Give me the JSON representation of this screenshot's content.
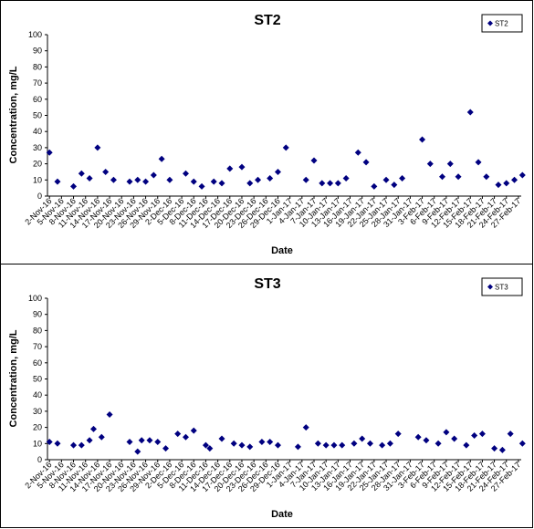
{
  "chart_data": [
    {
      "type": "scatter",
      "title": "ST2",
      "xlabel": "Date",
      "ylabel": "Concentration, mg/L",
      "ylim": [
        0,
        100
      ],
      "yticks": [
        "0",
        "10",
        "20",
        "30",
        "40",
        "50",
        "60",
        "70",
        "80",
        "90",
        "100"
      ],
      "xticks": [
        "2-Nov-16",
        "5-Nov-16",
        "8-Nov-16",
        "11-Nov-16",
        "14-Nov-16",
        "17-Nov-16",
        "20-Nov-16",
        "23-Nov-16",
        "26-Nov-16",
        "29-Nov-16",
        "2-Dec-16",
        "5-Dec-16",
        "8-Dec-16",
        "11-Dec-16",
        "14-Dec-16",
        "17-Dec-16",
        "20-Dec-16",
        "23-Dec-16",
        "26-Dec-16",
        "29-Dec-16",
        "1-Jan-17",
        "4-Jan-17",
        "7-Jan-17",
        "10-Jan-17",
        "13-Jan-17",
        "16-Jan-17",
        "19-Jan-17",
        "22-Jan-17",
        "25-Jan-17",
        "28-Jan-17",
        "31-Jan-17",
        "3-Feb-17",
        "6-Feb-17",
        "9-Feb-17",
        "12-Feb-17",
        "15-Feb-17",
        "18-Feb-17",
        "21-Feb-17",
        "24-Feb-17",
        "27-Feb-17"
      ],
      "grid": false,
      "legend": "top-right",
      "series": [
        {
          "name": "ST2",
          "color": "#000080",
          "points": [
            {
              "x": "2-Nov-16",
              "y": 27
            },
            {
              "x": "4-Nov-16",
              "y": 9
            },
            {
              "x": "8-Nov-16",
              "y": 6
            },
            {
              "x": "10-Nov-16",
              "y": 14
            },
            {
              "x": "12-Nov-16",
              "y": 11
            },
            {
              "x": "14-Nov-16",
              "y": 30
            },
            {
              "x": "16-Nov-16",
              "y": 15
            },
            {
              "x": "18-Nov-16",
              "y": 10
            },
            {
              "x": "22-Nov-16",
              "y": 9
            },
            {
              "x": "24-Nov-16",
              "y": 10
            },
            {
              "x": "26-Nov-16",
              "y": 9
            },
            {
              "x": "28-Nov-16",
              "y": 13
            },
            {
              "x": "30-Nov-16",
              "y": 23
            },
            {
              "x": "2-Dec-16",
              "y": 10
            },
            {
              "x": "6-Dec-16",
              "y": 14
            },
            {
              "x": "8-Dec-16",
              "y": 9
            },
            {
              "x": "10-Dec-16",
              "y": 6
            },
            {
              "x": "13-Dec-16",
              "y": 9
            },
            {
              "x": "15-Dec-16",
              "y": 8
            },
            {
              "x": "17-Dec-16",
              "y": 17
            },
            {
              "x": "20-Dec-16",
              "y": 18
            },
            {
              "x": "22-Dec-16",
              "y": 8
            },
            {
              "x": "24-Dec-16",
              "y": 10
            },
            {
              "x": "27-Dec-16",
              "y": 11
            },
            {
              "x": "29-Dec-16",
              "y": 15
            },
            {
              "x": "31-Dec-16",
              "y": 30
            },
            {
              "x": "5-Jan-17",
              "y": 10
            },
            {
              "x": "7-Jan-17",
              "y": 22
            },
            {
              "x": "9-Jan-17",
              "y": 8
            },
            {
              "x": "11-Jan-17",
              "y": 8
            },
            {
              "x": "13-Jan-17",
              "y": 8
            },
            {
              "x": "15-Jan-17",
              "y": 11
            },
            {
              "x": "18-Jan-17",
              "y": 27
            },
            {
              "x": "20-Jan-17",
              "y": 21
            },
            {
              "x": "22-Jan-17",
              "y": 6
            },
            {
              "x": "25-Jan-17",
              "y": 10
            },
            {
              "x": "27-Jan-17",
              "y": 7
            },
            {
              "x": "29-Jan-17",
              "y": 11
            },
            {
              "x": "3-Feb-17",
              "y": 35
            },
            {
              "x": "5-Feb-17",
              "y": 20
            },
            {
              "x": "8-Feb-17",
              "y": 12
            },
            {
              "x": "10-Feb-17",
              "y": 20
            },
            {
              "x": "12-Feb-17",
              "y": 12
            },
            {
              "x": "15-Feb-17",
              "y": 52
            },
            {
              "x": "17-Feb-17",
              "y": 21
            },
            {
              "x": "19-Feb-17",
              "y": 12
            },
            {
              "x": "22-Feb-17",
              "y": 7
            },
            {
              "x": "24-Feb-17",
              "y": 8
            },
            {
              "x": "26-Feb-17",
              "y": 10
            },
            {
              "x": "28-Feb-17",
              "y": 13
            }
          ]
        }
      ]
    },
    {
      "type": "scatter",
      "title": "ST3",
      "xlabel": "Date",
      "ylabel": "Concentration, mg/L",
      "ylim": [
        0,
        100
      ],
      "yticks": [
        "0",
        "10",
        "20",
        "30",
        "40",
        "50",
        "60",
        "70",
        "80",
        "90",
        "100"
      ],
      "xticks": [
        "2-Nov-16",
        "5-Nov-16",
        "8-Nov-16",
        "11-Nov-16",
        "14-Nov-16",
        "17-Nov-16",
        "20-Nov-16",
        "23-Nov-16",
        "26-Nov-16",
        "29-Nov-16",
        "2-Dec-16",
        "5-Dec-16",
        "8-Dec-16",
        "11-Dec-16",
        "14-Dec-16",
        "17-Dec-16",
        "20-Dec-16",
        "23-Dec-16",
        "26-Dec-16",
        "29-Dec-16",
        "1-Jan-17",
        "4-Jan-17",
        "7-Jan-17",
        "10-Jan-17",
        "13-Jan-17",
        "16-Jan-17",
        "19-Jan-17",
        "22-Jan-17",
        "25-Jan-17",
        "28-Jan-17",
        "31-Jan-17",
        "3-Feb-17",
        "6-Feb-17",
        "9-Feb-17",
        "12-Feb-17",
        "15-Feb-17",
        "18-Feb-17",
        "21-Feb-17",
        "24-Feb-17",
        "27-Feb-17"
      ],
      "grid": false,
      "legend": "top-right",
      "series": [
        {
          "name": "ST3",
          "color": "#000080",
          "points": [
            {
              "x": "2-Nov-16",
              "y": 11
            },
            {
              "x": "4-Nov-16",
              "y": 10
            },
            {
              "x": "8-Nov-16",
              "y": 9
            },
            {
              "x": "10-Nov-16",
              "y": 9
            },
            {
              "x": "12-Nov-16",
              "y": 12
            },
            {
              "x": "13-Nov-16",
              "y": 19
            },
            {
              "x": "15-Nov-16",
              "y": 14
            },
            {
              "x": "17-Nov-16",
              "y": 28
            },
            {
              "x": "22-Nov-16",
              "y": 11
            },
            {
              "x": "24-Nov-16",
              "y": 5
            },
            {
              "x": "25-Nov-16",
              "y": 12
            },
            {
              "x": "27-Nov-16",
              "y": 12
            },
            {
              "x": "29-Nov-16",
              "y": 11
            },
            {
              "x": "1-Dec-16",
              "y": 7
            },
            {
              "x": "4-Dec-16",
              "y": 16
            },
            {
              "x": "6-Dec-16",
              "y": 14
            },
            {
              "x": "8-Dec-16",
              "y": 18
            },
            {
              "x": "11-Dec-16",
              "y": 9
            },
            {
              "x": "12-Dec-16",
              "y": 7
            },
            {
              "x": "15-Dec-16",
              "y": 13
            },
            {
              "x": "18-Dec-16",
              "y": 10
            },
            {
              "x": "20-Dec-16",
              "y": 9
            },
            {
              "x": "22-Dec-16",
              "y": 8
            },
            {
              "x": "25-Dec-16",
              "y": 11
            },
            {
              "x": "27-Dec-16",
              "y": 11
            },
            {
              "x": "29-Dec-16",
              "y": 9
            },
            {
              "x": "3-Jan-17",
              "y": 8
            },
            {
              "x": "5-Jan-17",
              "y": 20
            },
            {
              "x": "8-Jan-17",
              "y": 10
            },
            {
              "x": "10-Jan-17",
              "y": 9
            },
            {
              "x": "12-Jan-17",
              "y": 9
            },
            {
              "x": "14-Jan-17",
              "y": 9
            },
            {
              "x": "17-Jan-17",
              "y": 10
            },
            {
              "x": "19-Jan-17",
              "y": 13
            },
            {
              "x": "21-Jan-17",
              "y": 10
            },
            {
              "x": "24-Jan-17",
              "y": 9
            },
            {
              "x": "26-Jan-17",
              "y": 10
            },
            {
              "x": "28-Jan-17",
              "y": 16
            },
            {
              "x": "2-Feb-17",
              "y": 14
            },
            {
              "x": "4-Feb-17",
              "y": 12
            },
            {
              "x": "7-Feb-17",
              "y": 10
            },
            {
              "x": "9-Feb-17",
              "y": 17
            },
            {
              "x": "11-Feb-17",
              "y": 13
            },
            {
              "x": "14-Feb-17",
              "y": 9
            },
            {
              "x": "16-Feb-17",
              "y": 15
            },
            {
              "x": "18-Feb-17",
              "y": 16
            },
            {
              "x": "21-Feb-17",
              "y": 7
            },
            {
              "x": "23-Feb-17",
              "y": 6
            },
            {
              "x": "25-Feb-17",
              "y": 16
            },
            {
              "x": "28-Feb-17",
              "y": 10
            }
          ]
        }
      ]
    }
  ]
}
